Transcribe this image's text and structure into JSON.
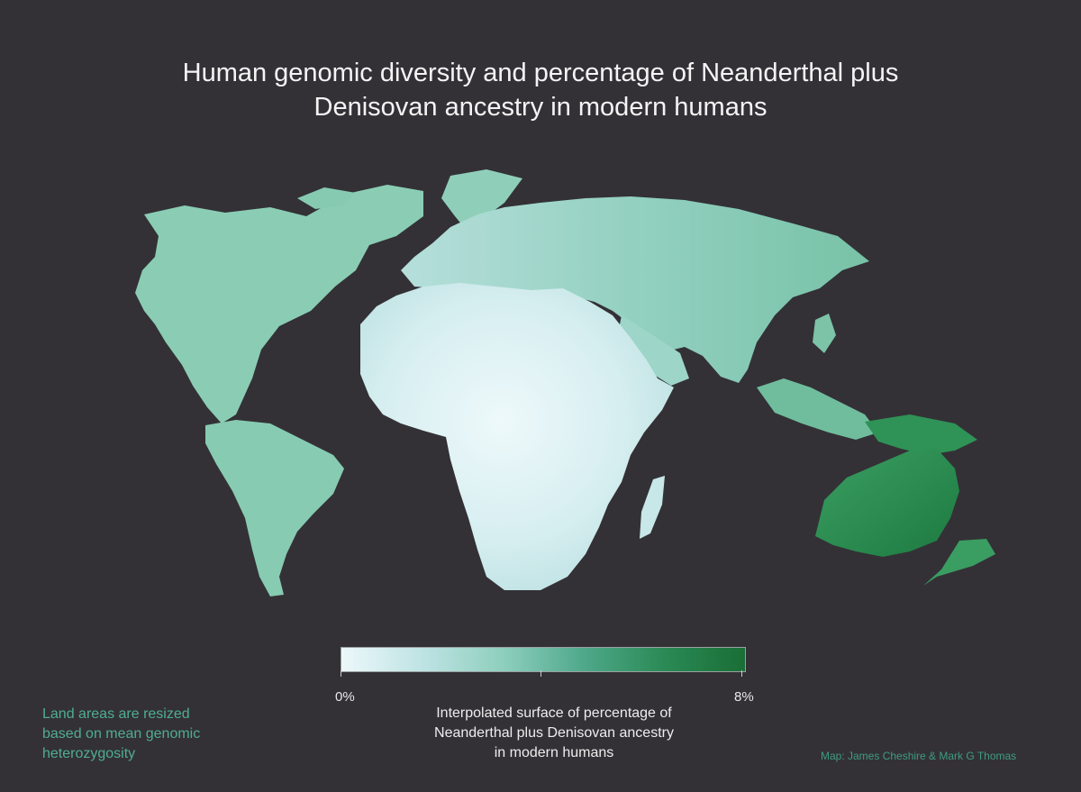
{
  "title": {
    "line1": "Human genomic diversity and percentage of Neanderthal plus",
    "line2": "Denisovan ancestry in modern humans"
  },
  "legend": {
    "min_label": "0%",
    "max_label": "8%",
    "description": {
      "line1": "Interpolated surface of percentage of",
      "line2": "Neanderthal plus Denisovan ancestry",
      "line3": "in modern humans"
    },
    "gradient_colors": [
      "#ecf8fa",
      "#bfe3e4",
      "#8ecfbd",
      "#4fa88a",
      "#2a8a55",
      "#1a6e36"
    ]
  },
  "note": {
    "line1": "Land areas are resized",
    "line2": "based on mean genomic",
    "line3": "heterozygosity"
  },
  "credit": "Map: James Cheshire & Mark G Thomas",
  "colors": {
    "background": "#333136",
    "africa": "#dcf0f3",
    "eurasia": "#90cfbf",
    "americas": "#88cbb3",
    "oceania": "#2d9254",
    "note_text": "#4fae90"
  }
}
